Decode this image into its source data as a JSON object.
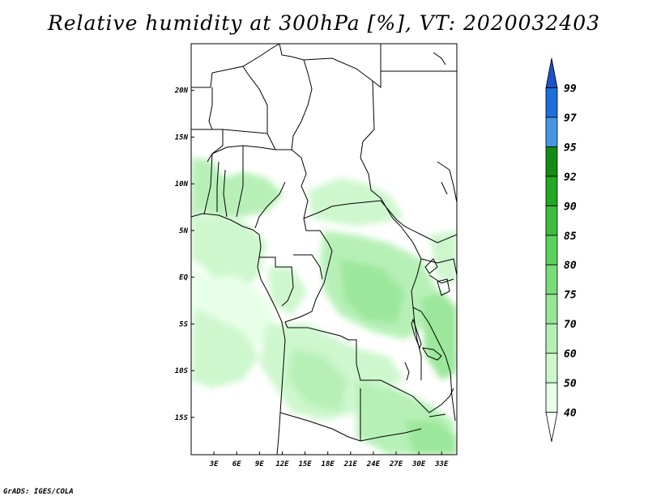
{
  "title": "Relative humidity at 300hPa [%], VT: 2020032403",
  "footer": "GrADS: IGES/COLA",
  "map": {
    "lon_labels": [
      "3E",
      "6E",
      "9E",
      "12E",
      "15E",
      "18E",
      "21E",
      "24E",
      "27E",
      "30E",
      "33E"
    ],
    "lat_labels": [
      "20N",
      "15N",
      "10N",
      "5N",
      "EQ",
      "5S",
      "10S",
      "15S"
    ],
    "lon_range": [
      0,
      35
    ],
    "lat_range": [
      -19,
      25
    ]
  },
  "colorbar": {
    "levels": [
      "40",
      "50",
      "60",
      "70",
      "75",
      "80",
      "85",
      "90",
      "92",
      "95",
      "97",
      "99"
    ],
    "colors": [
      "#ffffff",
      "#e6ffe6",
      "#ccf7cc",
      "#b4f0b4",
      "#96e696",
      "#78dc78",
      "#5ad25a",
      "#3cbe3c",
      "#22a822",
      "#148c14",
      "#4696e6",
      "#1e6ede",
      "#1e50c8"
    ]
  }
}
